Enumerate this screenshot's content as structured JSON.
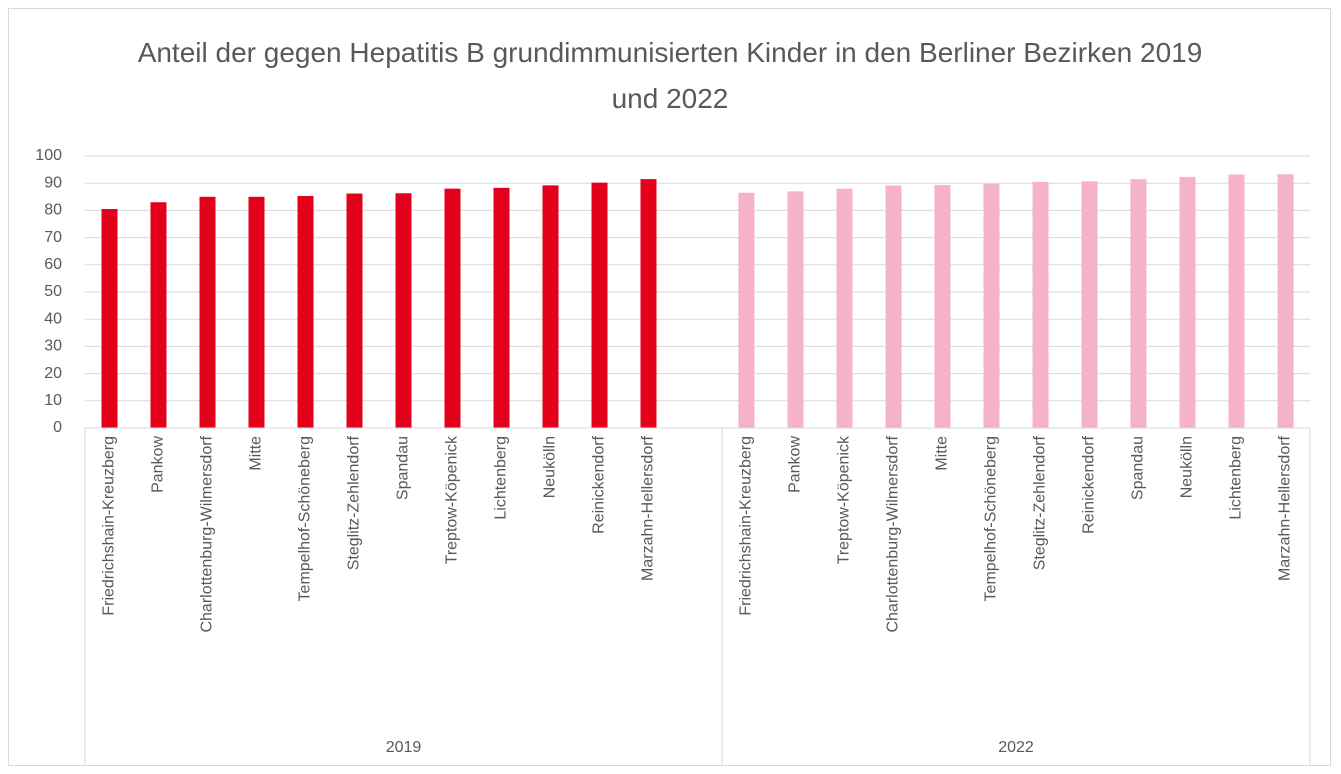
{
  "chart_data": {
    "type": "bar",
    "title": "Anteil der gegen Hepatitis B grundimmunisierten Kinder in den Berliner Bezirken 2019 und 2022",
    "ylim": [
      0,
      100
    ],
    "yticks": [
      0,
      10,
      20,
      30,
      40,
      50,
      60,
      70,
      80,
      90,
      100
    ],
    "grid": true,
    "groups": [
      {
        "name": "2019",
        "color": "#e2001a",
        "categories": [
          "Friedrichshain-Kreuzberg",
          "Pankow",
          "Charlottenburg-Wilmersdorf",
          "Mitte",
          "Tempelhof-Schöneberg",
          "Steglitz-Zehlendorf",
          "Spandau",
          "Treptow-Köpenick",
          "Lichtenberg",
          "Neukölln",
          "Reinickendorf",
          "Marzahn-Hellersdorf",
          null
        ],
        "values": [
          80.5,
          83,
          85,
          85,
          85.3,
          86.2,
          86.3,
          88,
          88.3,
          89.2,
          90.2,
          91.5,
          null
        ]
      },
      {
        "name": "2022",
        "color": "#f5b3c8",
        "categories": [
          "Friedrichshain-Kreuzberg",
          "Pankow",
          "Treptow-Köpenick",
          "Charlottenburg-Wilmersdorf",
          "Mitte",
          "Tempelhof-Schöneberg",
          "Steglitz-Zehlendorf",
          "Reinickendorf",
          "Spandau",
          "Neukölln",
          "Lichtenberg",
          "Marzahn-Hellersdorf"
        ],
        "values": [
          86.5,
          87,
          88,
          89.2,
          89.3,
          89.8,
          90.5,
          90.7,
          91.5,
          92.3,
          93.2,
          93.3
        ]
      }
    ]
  }
}
